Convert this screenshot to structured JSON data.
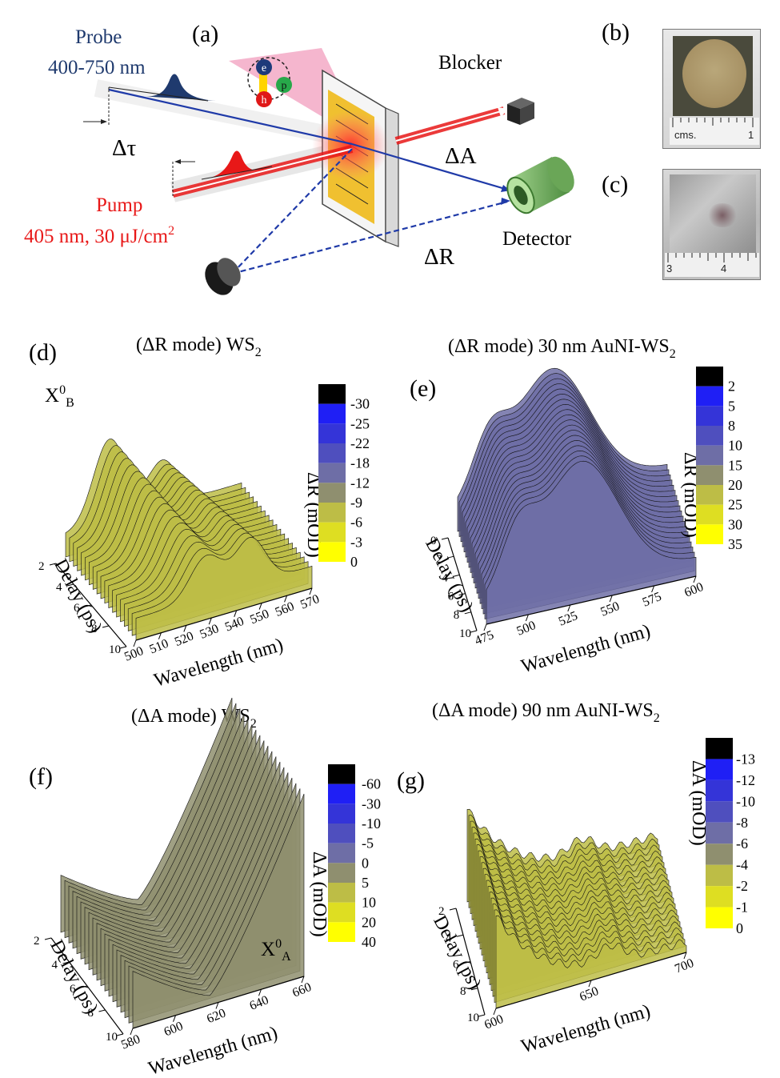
{
  "panel_a": {
    "label": "(a)",
    "probe_title": "Probe",
    "probe_range": "400-750 nm",
    "delay_symbol": "Δτ",
    "pump_title": "Pump",
    "pump_params": "405 nm, 30  μJ/cm",
    "pump_params_sup": "2",
    "blocker": "Blocker",
    "delta_a": "ΔA",
    "delta_r": "ΔR",
    "detector": "Detector",
    "electron": "e",
    "hole": "h",
    "phonon": "p"
  },
  "panel_b": {
    "label": "(b)",
    "ruler_text": "cms.",
    "ruler_mark": "1"
  },
  "panel_c": {
    "label": "(c)",
    "ruler_mark_left": "3",
    "ruler_mark_right": "4"
  },
  "chart_data": [
    {
      "panel": "(d)",
      "type": "area",
      "title": "(ΔR mode) WS",
      "title_sub": "2",
      "annotation": "X",
      "annotation_sup": "0",
      "annotation_sub": "B",
      "xlabel": "Wavelength (nm)",
      "ylabel": "Delay (ps)",
      "zlabel": "ΔR (mOD)",
      "x_ticks": [
        "500",
        "510",
        "520",
        "530",
        "540",
        "550",
        "560",
        "570"
      ],
      "y_ticks": [
        "2",
        "4",
        "6",
        "8",
        "10"
      ],
      "colorbar_levels": [
        "-30",
        "-25",
        "-22",
        "-18",
        "-12",
        "-9",
        "-6",
        "-3",
        "0"
      ],
      "colorbar_colors": [
        "#000000",
        "#1f1ff5",
        "#3434d8",
        "#4f4fbe",
        "#6e6ea6",
        "#8f8f6f",
        "#bdbd46",
        "#dede22",
        "#ffff00"
      ]
    },
    {
      "panel": "(e)",
      "type": "area",
      "title": "(ΔR mode) 30 nm AuNI-WS",
      "title_sub": "2",
      "xlabel": "Wavelength (nm)",
      "ylabel": "Delay (ps)",
      "zlabel": "ΔR (mOD)",
      "x_ticks": [
        "475",
        "500",
        "525",
        "550",
        "575",
        "600"
      ],
      "y_ticks": [
        "0",
        "2",
        "4",
        "6",
        "8",
        "10"
      ],
      "colorbar_levels": [
        "2",
        "5",
        "8",
        "10",
        "15",
        "20",
        "25",
        "30",
        "35"
      ],
      "colorbar_colors": [
        "#000000",
        "#1f1ff5",
        "#3434d8",
        "#4f4fbe",
        "#6e6ea6",
        "#8f8f6f",
        "#bdbd46",
        "#dede22",
        "#ffff00"
      ]
    },
    {
      "panel": "(f)",
      "type": "area",
      "title": "(ΔA mode) WS",
      "title_sub": "2",
      "annotation": "X",
      "annotation_sup": "0",
      "annotation_sub": "A",
      "xlabel": "Wavelength (nm)",
      "ylabel": "Delay (ps)",
      "zlabel": "ΔA (mOD)",
      "x_ticks": [
        "580",
        "600",
        "620",
        "640",
        "660"
      ],
      "y_ticks": [
        "2",
        "4",
        "6",
        "8",
        "10"
      ],
      "colorbar_levels": [
        "-60",
        "-30",
        "-10",
        "-5",
        "0",
        "5",
        "10",
        "20",
        "40"
      ],
      "colorbar_colors": [
        "#000000",
        "#1f1ff5",
        "#3434d8",
        "#4f4fbe",
        "#6e6ea6",
        "#8f8f6f",
        "#bdbd46",
        "#dede22",
        "#ffff00"
      ]
    },
    {
      "panel": "(g)",
      "type": "area",
      "title": "(ΔA mode) 90 nm AuNI-WS",
      "title_sub": "2",
      "xlabel": "Wavelength (nm)",
      "ylabel": "Delay (ps)",
      "zlabel": "ΔA (mOD)",
      "x_ticks": [
        "600",
        "650",
        "700"
      ],
      "y_ticks": [
        "2",
        "4",
        "6",
        "8",
        "10"
      ],
      "colorbar_levels": [
        "-13",
        "-12",
        "-10",
        "-8",
        "-6",
        "-4",
        "-2",
        "-1",
        "0"
      ],
      "colorbar_colors": [
        "#000000",
        "#1f1ff5",
        "#3434d8",
        "#4f4fbe",
        "#6e6ea6",
        "#8f8f6f",
        "#bdbd46",
        "#dede22",
        "#ffff00"
      ]
    }
  ]
}
